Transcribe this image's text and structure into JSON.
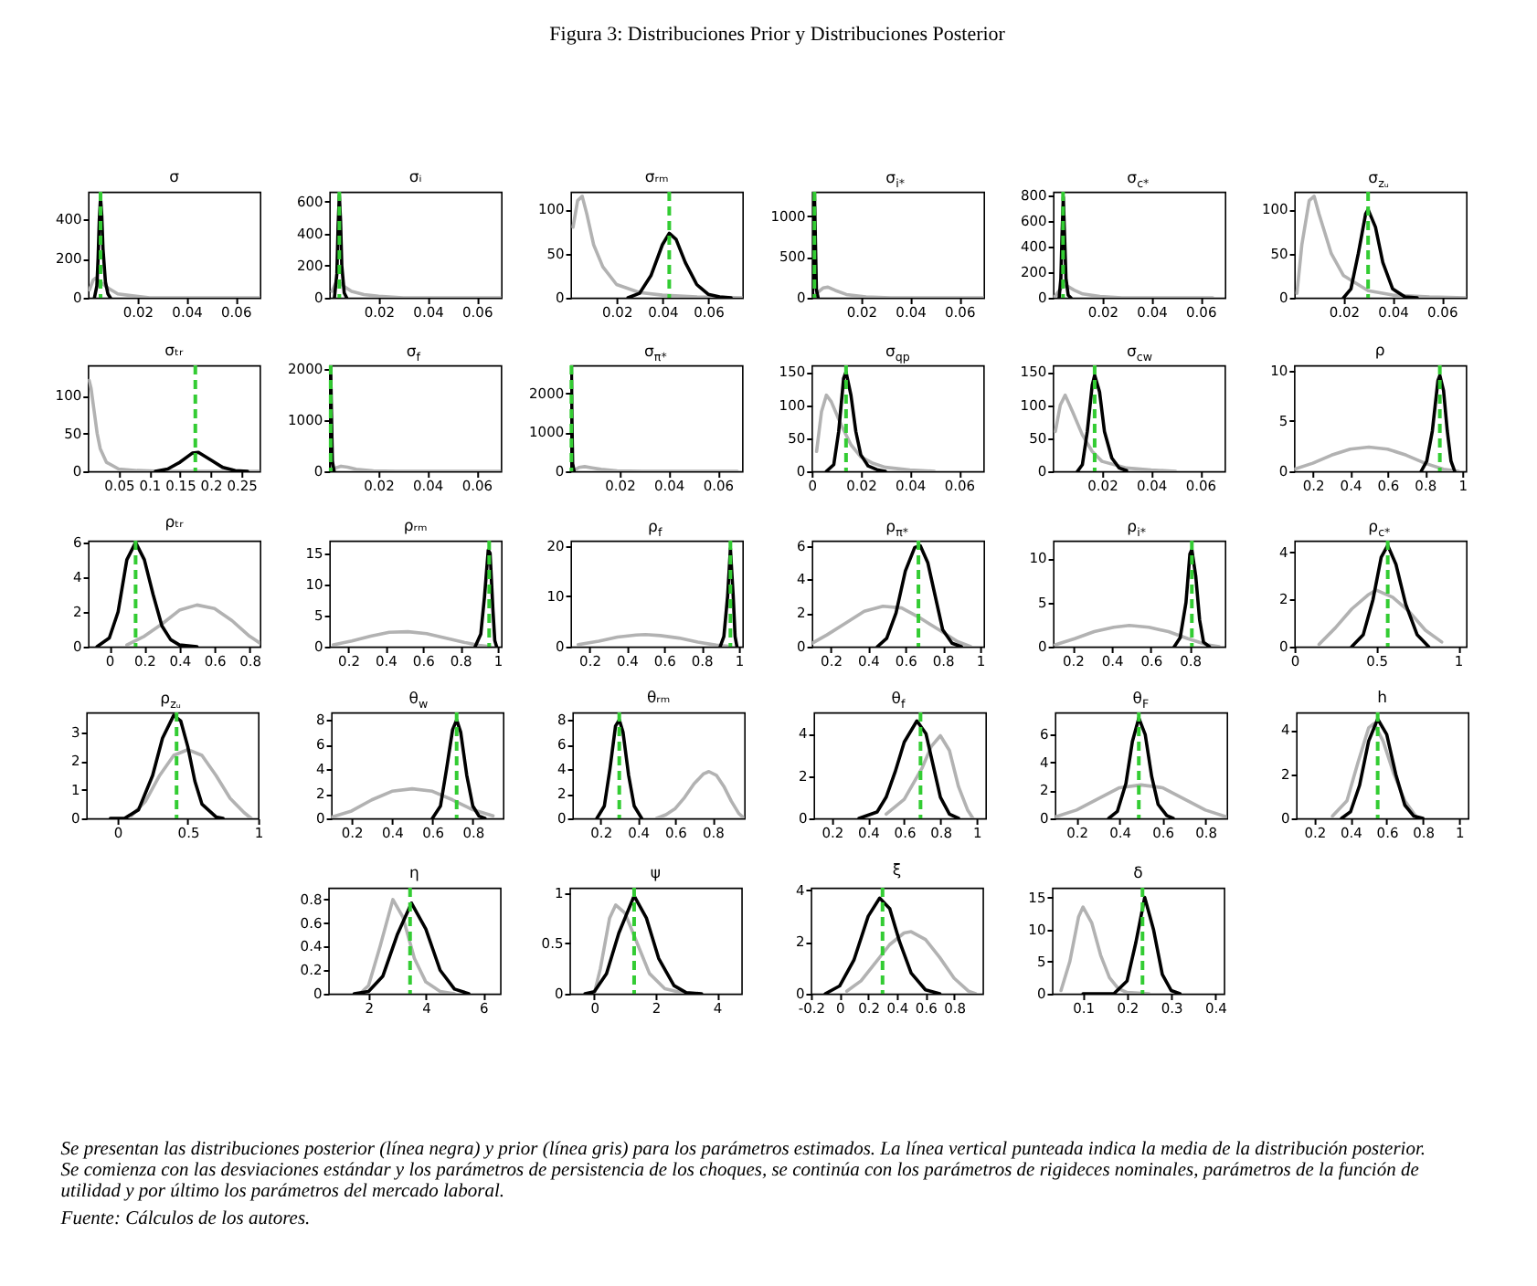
{
  "chart_data": [
    {
      "type": "other",
      "title": "Figura 3: Distribuciones Prior y Distribuciones Posterior"
    },
    {
      "type": "line",
      "title": "σ",
      "xlim": [
        0,
        0.07
      ],
      "xticks": [
        0.02,
        0.04,
        0.06
      ],
      "ylim": [
        0,
        540
      ],
      "yticks": [
        0,
        200,
        400
      ],
      "series": [
        {
          "color": "#b2b2b2",
          "x": [
            0.0005,
            0.002,
            0.003,
            0.005,
            0.008,
            0.012,
            0.018,
            0.025,
            0.035,
            0.05,
            0.07
          ],
          "values": [
            40,
            90,
            100,
            80,
            50,
            20,
            10,
            0,
            0,
            0,
            0
          ]
        },
        {
          "color": "#000000",
          "x": [
            0.0025,
            0.0035,
            0.004,
            0.0045,
            0.005,
            0.0055,
            0.006,
            0.007,
            0.008,
            0.009
          ],
          "values": [
            0,
            60,
            200,
            400,
            510,
            420,
            250,
            80,
            20,
            0
          ]
        }
      ],
      "ref_lines": [
        {
          "axis": "x",
          "value": 0.005,
          "color": "#33cc33",
          "line_style": "dashed"
        }
      ]
    },
    {
      "type": "line",
      "title": "σᵢ",
      "xlim": [
        0,
        0.07
      ],
      "xticks": [
        0.02,
        0.04,
        0.06
      ],
      "ylim": [
        0,
        660
      ],
      "yticks": [
        0,
        200,
        400,
        600
      ],
      "series": [
        {
          "color": "#b2b2b2",
          "x": [
            0.001,
            0.0025,
            0.0035,
            0.006,
            0.009,
            0.014,
            0.02,
            0.03,
            0.045,
            0.07
          ],
          "values": [
            40,
            90,
            100,
            70,
            40,
            20,
            10,
            0,
            0,
            0
          ]
        },
        {
          "color": "#000000",
          "x": [
            0.002,
            0.003,
            0.0035,
            0.004,
            0.0045,
            0.005,
            0.006,
            0.007
          ],
          "values": [
            0,
            150,
            450,
            640,
            480,
            200,
            30,
            0
          ]
        }
      ],
      "ref_lines": [
        {
          "axis": "x",
          "value": 0.004,
          "color": "#33cc33",
          "line_style": "dashed"
        }
      ]
    },
    {
      "type": "line",
      "title": "σᵣₘ",
      "xlim": [
        0,
        0.075
      ],
      "xticks": [
        0.02,
        0.04,
        0.06
      ],
      "ylim": [
        0,
        120
      ],
      "yticks": [
        0,
        50,
        100
      ],
      "series": [
        {
          "color": "#b2b2b2",
          "x": [
            0.001,
            0.003,
            0.005,
            0.007,
            0.01,
            0.014,
            0.02,
            0.03,
            0.04,
            0.055,
            0.075
          ],
          "values": [
            80,
            110,
            115,
            95,
            60,
            35,
            15,
            6,
            3,
            1,
            0
          ]
        },
        {
          "color": "#000000",
          "x": [
            0.025,
            0.03,
            0.035,
            0.04,
            0.043,
            0.046,
            0.05,
            0.055,
            0.06,
            0.065,
            0.07
          ],
          "values": [
            0,
            5,
            25,
            60,
            73,
            66,
            40,
            15,
            4,
            1,
            0
          ]
        }
      ],
      "ref_lines": [
        {
          "axis": "x",
          "value": 0.043,
          "color": "#33cc33",
          "line_style": "dashed"
        }
      ]
    },
    {
      "type": "line",
      "title": "σ$_{i*}$",
      "xlim": [
        0,
        0.07
      ],
      "xticks": [
        0.02,
        0.04,
        0.06
      ],
      "ylim": [
        0,
        1300
      ],
      "yticks": [
        0,
        500,
        1000
      ],
      "series": [
        {
          "color": "#b2b2b2",
          "x": [
            0.001,
            0.0025,
            0.0045,
            0.0065,
            0.0095,
            0.014,
            0.022,
            0.032,
            0.05,
            0.07
          ],
          "values": [
            20,
            70,
            120,
            130,
            90,
            40,
            10,
            0,
            0,
            0
          ]
        },
        {
          "color": "#000000",
          "x": [
            0.0002,
            0.0006,
            0.001,
            0.0014,
            0.0018,
            0.0025
          ],
          "values": [
            0,
            600,
            1300,
            700,
            100,
            0
          ]
        }
      ],
      "ref_lines": [
        {
          "axis": "x",
          "value": 0.001,
          "color": "#33cc33",
          "line_style": "dashed"
        }
      ]
    },
    {
      "type": "line",
      "title": "σ$_{c*}$",
      "xlim": [
        0,
        0.07
      ],
      "xticks": [
        0.02,
        0.04,
        0.06
      ],
      "ylim": [
        0,
        830
      ],
      "yticks": [
        0,
        200,
        400,
        600,
        800
      ],
      "series": [
        {
          "color": "#b2b2b2",
          "x": [
            0.0007,
            0.0018,
            0.0038,
            0.0058,
            0.0085,
            0.012,
            0.019,
            0.028,
            0.04,
            0.065
          ],
          "values": [
            10,
            40,
            90,
            90,
            60,
            30,
            10,
            0,
            0,
            0
          ]
        },
        {
          "color": "#000000",
          "x": [
            0.0024,
            0.0031,
            0.0036,
            0.0041,
            0.0046,
            0.0052,
            0.0061,
            0.0072
          ],
          "values": [
            0,
            150,
            500,
            790,
            500,
            150,
            20,
            0
          ]
        }
      ],
      "ref_lines": [
        {
          "axis": "x",
          "value": 0.004,
          "color": "#33cc33",
          "line_style": "dashed"
        }
      ]
    },
    {
      "type": "line",
      "title": "σ$_{zᵤ}$",
      "xlim": [
        0,
        0.07
      ],
      "xticks": [
        0.02,
        0.04,
        0.06
      ],
      "ylim": [
        0,
        120
      ],
      "yticks": [
        0,
        50,
        100
      ],
      "series": [
        {
          "color": "#b2b2b2",
          "x": [
            0.001,
            0.003,
            0.006,
            0.008,
            0.01,
            0.015,
            0.02,
            0.03,
            0.04,
            0.055,
            0.07
          ],
          "values": [
            5,
            60,
            110,
            115,
            95,
            50,
            25,
            8,
            3,
            1,
            0
          ]
        },
        {
          "color": "#000000",
          "x": [
            0.02,
            0.023,
            0.026,
            0.029,
            0.03,
            0.033,
            0.036,
            0.04,
            0.045,
            0.05
          ],
          "values": [
            0,
            10,
            50,
            95,
            100,
            80,
            40,
            10,
            1,
            0
          ]
        }
      ],
      "ref_lines": [
        {
          "axis": "x",
          "value": 0.03,
          "color": "#33cc33",
          "line_style": "dashed"
        }
      ]
    },
    {
      "type": "line",
      "title": "σₜᵣ",
      "xlim": [
        0,
        0.28
      ],
      "xticks": [
        0.05,
        0.1,
        0.15,
        0.2,
        0.25
      ],
      "ylim": [
        0,
        140
      ],
      "yticks": [
        0,
        50,
        100
      ],
      "series": [
        {
          "color": "#b2b2b2",
          "x": [
            0.002,
            0.005,
            0.01,
            0.015,
            0.02,
            0.03,
            0.05,
            0.08,
            0.12,
            0.2,
            0.28
          ],
          "values": [
            120,
            110,
            80,
            50,
            30,
            12,
            3,
            1,
            0,
            0,
            0
          ]
        },
        {
          "color": "#000000",
          "x": [
            0.11,
            0.13,
            0.15,
            0.17,
            0.18,
            0.2,
            0.22,
            0.24,
            0.26
          ],
          "values": [
            0,
            3,
            12,
            24,
            25,
            15,
            5,
            1,
            0
          ]
        }
      ],
      "ref_lines": [
        {
          "axis": "x",
          "value": 0.175,
          "color": "#33cc33",
          "line_style": "dashed"
        }
      ]
    },
    {
      "type": "line",
      "title": "σ$_{f}$",
      "xlim": [
        0,
        0.07
      ],
      "xticks": [
        0.02,
        0.04,
        0.06
      ],
      "ylim": [
        0,
        2080
      ],
      "yticks": [
        0,
        1000,
        2000
      ],
      "series": [
        {
          "color": "#b2b2b2",
          "x": [
            0.0012,
            0.0028,
            0.0048,
            0.0075,
            0.011,
            0.018,
            0.027,
            0.04,
            0.07
          ],
          "values": [
            20,
            70,
            100,
            80,
            40,
            10,
            0,
            0,
            0
          ]
        },
        {
          "color": "#000000",
          "x": [
            0.0001,
            0.0003,
            0.0006,
            0.0009,
            0.0013,
            0.002
          ],
          "values": [
            0,
            1200,
            2050,
            1200,
            200,
            0
          ]
        }
      ],
      "ref_lines": [
        {
          "axis": "x",
          "value": 0.0006,
          "color": "#33cc33",
          "line_style": "dashed"
        }
      ]
    },
    {
      "type": "line",
      "title": "σ$_{π*}$",
      "xlim": [
        0,
        0.07
      ],
      "xticks": [
        0.02,
        0.04,
        0.06
      ],
      "ylim": [
        0,
        2720
      ],
      "yticks": [
        0,
        1000,
        2000
      ],
      "series": [
        {
          "color": "#b2b2b2",
          "x": [
            0.0015,
            0.0035,
            0.0058,
            0.0088,
            0.0125,
            0.019,
            0.029,
            0.042,
            0.068
          ],
          "values": [
            30,
            100,
            120,
            90,
            50,
            10,
            0,
            0,
            0
          ]
        },
        {
          "color": "#000000",
          "x": [
            0.0001,
            0.0002,
            0.0004,
            0.0006,
            0.0009,
            0.0015
          ],
          "values": [
            0,
            1300,
            2700,
            1400,
            200,
            0
          ]
        }
      ],
      "ref_lines": [
        {
          "axis": "x",
          "value": 0.0004,
          "color": "#33cc33",
          "line_style": "dashed"
        }
      ]
    },
    {
      "type": "line",
      "title": "σ$_{qp}$",
      "xlim": [
        0,
        0.07
      ],
      "xticks": [
        0,
        0.02,
        0.04,
        0.06
      ],
      "ylim": [
        0,
        160
      ],
      "yticks": [
        0,
        50,
        100,
        150
      ],
      "series": [
        {
          "color": "#b2b2b2",
          "x": [
            0.002,
            0.004,
            0.006,
            0.008,
            0.012,
            0.016,
            0.02,
            0.025,
            0.03,
            0.04,
            0.05
          ],
          "values": [
            30,
            90,
            115,
            105,
            70,
            40,
            22,
            12,
            6,
            2,
            0
          ]
        },
        {
          "color": "#000000",
          "x": [
            0.006,
            0.009,
            0.011,
            0.013,
            0.014,
            0.016,
            0.018,
            0.02,
            0.023,
            0.027,
            0.03
          ],
          "values": [
            0,
            10,
            60,
            140,
            150,
            115,
            60,
            25,
            8,
            2,
            0
          ]
        }
      ],
      "ref_lines": [
        {
          "axis": "x",
          "value": 0.014,
          "color": "#33cc33",
          "line_style": "dashed"
        }
      ]
    },
    {
      "type": "line",
      "title": "σ$_{cw}$",
      "xlim": [
        0,
        0.07
      ],
      "xticks": [
        0.02,
        0.04,
        0.06
      ],
      "ylim": [
        0,
        160
      ],
      "yticks": [
        0,
        50,
        100,
        150
      ],
      "series": [
        {
          "color": "#b2b2b2",
          "x": [
            0.001,
            0.003,
            0.005,
            0.008,
            0.012,
            0.016,
            0.02,
            0.03,
            0.04,
            0.05
          ],
          "values": [
            60,
            100,
            115,
            90,
            55,
            30,
            15,
            5,
            2,
            0
          ]
        },
        {
          "color": "#000000",
          "x": [
            0.01,
            0.012,
            0.014,
            0.016,
            0.017,
            0.019,
            0.021,
            0.024,
            0.027,
            0.03
          ],
          "values": [
            0,
            10,
            60,
            130,
            145,
            120,
            60,
            20,
            5,
            1
          ]
        }
      ],
      "ref_lines": [
        {
          "axis": "x",
          "value": 0.017,
          "color": "#33cc33",
          "line_style": "dashed"
        }
      ]
    },
    {
      "type": "line",
      "title": "ρ",
      "xlim": [
        0.1,
        1.02
      ],
      "xticks": [
        0.2,
        0.4,
        0.6,
        0.8,
        1
      ],
      "ylim": [
        0,
        10.5
      ],
      "yticks": [
        0,
        5,
        10
      ],
      "series": [
        {
          "color": "#b2b2b2",
          "x": [
            0.1,
            0.2,
            0.3,
            0.4,
            0.5,
            0.6,
            0.7,
            0.8,
            0.9,
            0.98
          ],
          "values": [
            0.2,
            0.8,
            1.6,
            2.2,
            2.4,
            2.2,
            1.6,
            0.8,
            0.2,
            0
          ]
        },
        {
          "color": "#000000",
          "x": [
            0.78,
            0.81,
            0.84,
            0.87,
            0.88,
            0.9,
            0.92,
            0.94,
            0.96
          ],
          "values": [
            0,
            1,
            4,
            9,
            9.5,
            8,
            4,
            1,
            0
          ]
        }
      ],
      "ref_lines": [
        {
          "axis": "x",
          "value": 0.88,
          "color": "#33cc33",
          "line_style": "dashed"
        }
      ]
    },
    {
      "type": "line",
      "title": "ρₜᵣ",
      "xlim": [
        -0.12,
        0.86
      ],
      "xticks": [
        0,
        0.2,
        0.4,
        0.6,
        0.8
      ],
      "ylim": [
        0,
        6.1
      ],
      "yticks": [
        0,
        2,
        4,
        6
      ],
      "series": [
        {
          "color": "#b2b2b2",
          "x": [
            0.1,
            0.2,
            0.3,
            0.4,
            0.5,
            0.6,
            0.7,
            0.8,
            0.86
          ],
          "values": [
            0.1,
            0.6,
            1.3,
            2.1,
            2.4,
            2.2,
            1.5,
            0.6,
            0.2
          ]
        },
        {
          "color": "#000000",
          "x": [
            -0.07,
            0,
            0.05,
            0.1,
            0.15,
            0.2,
            0.25,
            0.3,
            0.35,
            0.4,
            0.5
          ],
          "values": [
            0,
            0.5,
            2,
            5,
            6,
            5,
            3,
            1.2,
            0.4,
            0.1,
            0
          ]
        }
      ],
      "ref_lines": [
        {
          "axis": "x",
          "value": 0.15,
          "color": "#33cc33",
          "line_style": "dashed"
        }
      ]
    },
    {
      "type": "line",
      "title": "ρᵣₘ",
      "xlim": [
        0.1,
        1.02
      ],
      "xticks": [
        0.2,
        0.4,
        0.6,
        0.8,
        1
      ],
      "ylim": [
        0,
        17
      ],
      "yticks": [
        0,
        5,
        10,
        15
      ],
      "series": [
        {
          "color": "#b2b2b2",
          "x": [
            0.12,
            0.22,
            0.32,
            0.42,
            0.52,
            0.62,
            0.72,
            0.82,
            0.9,
            0.96
          ],
          "values": [
            0.3,
            0.9,
            1.7,
            2.3,
            2.4,
            2.1,
            1.4,
            0.7,
            0.2,
            0
          ]
        },
        {
          "color": "#000000",
          "x": [
            0.88,
            0.91,
            0.93,
            0.95,
            0.96,
            0.975,
            0.985,
            0.995
          ],
          "values": [
            0,
            2,
            8,
            15.5,
            15,
            6,
            1,
            0
          ]
        }
      ],
      "ref_lines": [
        {
          "axis": "x",
          "value": 0.955,
          "color": "#33cc33",
          "line_style": "dashed"
        }
      ]
    },
    {
      "type": "line",
      "title": "ρ$_{f}$",
      "xlim": [
        0.1,
        1.02
      ],
      "xticks": [
        0.2,
        0.4,
        0.6,
        0.8,
        1
      ],
      "ylim": [
        0,
        21
      ],
      "yticks": [
        0,
        10,
        20
      ],
      "series": [
        {
          "color": "#b2b2b2",
          "x": [
            0.14,
            0.25,
            0.35,
            0.45,
            0.5,
            0.58,
            0.68,
            0.78,
            0.88,
            0.94
          ],
          "values": [
            0.4,
            1.1,
            1.9,
            2.3,
            2.4,
            2.2,
            1.7,
            0.9,
            0.3,
            0.1
          ]
        },
        {
          "color": "#000000",
          "x": [
            0.9,
            0.92,
            0.94,
            0.955,
            0.97,
            0.98,
            0.99
          ],
          "values": [
            0,
            2,
            10,
            19.5,
            10,
            2,
            0
          ]
        }
      ],
      "ref_lines": [
        {
          "axis": "x",
          "value": 0.955,
          "color": "#33cc33",
          "line_style": "dashed"
        }
      ]
    },
    {
      "type": "line",
      "title": "ρ$_{π*}$",
      "xlim": [
        0.1,
        1.02
      ],
      "xticks": [
        0.2,
        0.4,
        0.6,
        0.8,
        1
      ],
      "ylim": [
        0,
        6.3
      ],
      "yticks": [
        0,
        2,
        4,
        6
      ],
      "series": [
        {
          "color": "#b2b2b2",
          "x": [
            0.1,
            0.18,
            0.28,
            0.38,
            0.48,
            0.58,
            0.68,
            0.78,
            0.88,
            0.95
          ],
          "values": [
            0.2,
            0.7,
            1.4,
            2.1,
            2.4,
            2.3,
            1.7,
            1,
            0.3,
            0
          ]
        },
        {
          "color": "#000000",
          "x": [
            0.45,
            0.5,
            0.55,
            0.6,
            0.65,
            0.68,
            0.72,
            0.76,
            0.8,
            0.85,
            0.9
          ],
          "values": [
            0,
            0.5,
            2,
            4.5,
            5.9,
            6,
            5,
            3,
            1,
            0.2,
            0
          ]
        }
      ],
      "ref_lines": [
        {
          "axis": "x",
          "value": 0.67,
          "color": "#33cc33",
          "line_style": "dashed"
        }
      ]
    },
    {
      "type": "line",
      "title": "ρ$_{i*}$",
      "xlim": [
        0.1,
        0.98
      ],
      "xticks": [
        0.2,
        0.4,
        0.6,
        0.8
      ],
      "ylim": [
        0,
        12
      ],
      "yticks": [
        0,
        5,
        10
      ],
      "series": [
        {
          "color": "#b2b2b2",
          "x": [
            0.11,
            0.21,
            0.31,
            0.41,
            0.49,
            0.59,
            0.69,
            0.79,
            0.89,
            0.95
          ],
          "values": [
            0.2,
            0.9,
            1.7,
            2.2,
            2.4,
            2.2,
            1.7,
            0.9,
            0.2,
            0
          ]
        },
        {
          "color": "#000000",
          "x": [
            0.72,
            0.75,
            0.78,
            0.8,
            0.81,
            0.83,
            0.85,
            0.87,
            0.9
          ],
          "values": [
            0,
            1,
            5,
            10.5,
            11,
            8,
            3,
            0.5,
            0
          ]
        }
      ],
      "ref_lines": [
        {
          "axis": "x",
          "value": 0.81,
          "color": "#33cc33",
          "line_style": "dashed"
        }
      ]
    },
    {
      "type": "line",
      "title": "ρ$_{c*}$",
      "xlim": [
        0,
        1.05
      ],
      "xticks": [
        0,
        0.5,
        1
      ],
      "ylim": [
        0,
        4.5
      ],
      "yticks": [
        0,
        2,
        4
      ],
      "series": [
        {
          "color": "#b2b2b2",
          "x": [
            0.15,
            0.25,
            0.35,
            0.45,
            0.5,
            0.6,
            0.7,
            0.8,
            0.9
          ],
          "values": [
            0.1,
            0.8,
            1.6,
            2.2,
            2.4,
            2.1,
            1.5,
            0.7,
            0.2
          ]
        },
        {
          "color": "#000000",
          "x": [
            0.35,
            0.42,
            0.48,
            0.53,
            0.57,
            0.62,
            0.68,
            0.75,
            0.82
          ],
          "values": [
            0,
            0.5,
            2,
            3.8,
            4.3,
            3.5,
            1.8,
            0.5,
            0
          ]
        }
      ],
      "ref_lines": [
        {
          "axis": "x",
          "value": 0.57,
          "color": "#33cc33",
          "line_style": "dashed"
        }
      ]
    },
    {
      "type": "line",
      "title": "ρ$_{zᵤ}$",
      "xlim": [
        -0.22,
        1
      ],
      "xticks": [
        0,
        0.5,
        1
      ],
      "ylim": [
        0,
        3.7
      ],
      "yticks": [
        0,
        1,
        2,
        3
      ],
      "series": [
        {
          "color": "#b2b2b2",
          "x": [
            0.1,
            0.2,
            0.3,
            0.4,
            0.5,
            0.6,
            0.7,
            0.8,
            0.9,
            0.95
          ],
          "values": [
            0.1,
            0.6,
            1.5,
            2.2,
            2.4,
            2.2,
            1.5,
            0.7,
            0.2,
            0
          ]
        },
        {
          "color": "#000000",
          "x": [
            -0.05,
            0.05,
            0.15,
            0.25,
            0.32,
            0.4,
            0.45,
            0.5,
            0.55,
            0.6,
            0.7,
            0.75
          ],
          "values": [
            0,
            0,
            0.3,
            1.5,
            2.8,
            3.6,
            3.4,
            2.5,
            1.3,
            0.5,
            0.05,
            0
          ]
        }
      ],
      "ref_lines": [
        {
          "axis": "x",
          "value": 0.42,
          "color": "#33cc33",
          "line_style": "dashed"
        }
      ]
    },
    {
      "type": "line",
      "title": "θ$_{w}$",
      "xlim": [
        0.1,
        0.95
      ],
      "xticks": [
        0.2,
        0.4,
        0.6,
        0.8
      ],
      "ylim": [
        0,
        8.6
      ],
      "yticks": [
        0,
        2,
        4,
        6,
        8
      ],
      "series": [
        {
          "color": "#b2b2b2",
          "x": [
            0.1,
            0.2,
            0.3,
            0.4,
            0.5,
            0.6,
            0.7,
            0.8,
            0.9
          ],
          "values": [
            0.1,
            0.6,
            1.5,
            2.2,
            2.4,
            2.2,
            1.5,
            0.7,
            0.2
          ]
        },
        {
          "color": "#000000",
          "x": [
            0.6,
            0.64,
            0.67,
            0.7,
            0.72,
            0.74,
            0.77,
            0.8,
            0.83,
            0.86
          ],
          "values": [
            0,
            1,
            4,
            7.2,
            8,
            7,
            3.5,
            1,
            0.2,
            0
          ]
        }
      ],
      "ref_lines": [
        {
          "axis": "x",
          "value": 0.72,
          "color": "#33cc33",
          "line_style": "dashed"
        }
      ]
    },
    {
      "type": "line",
      "title": "θᵣₘ",
      "xlim": [
        0.05,
        0.97
      ],
      "xticks": [
        0.2,
        0.4,
        0.6,
        0.8
      ],
      "ylim": [
        0,
        8.6
      ],
      "yticks": [
        0,
        2,
        4,
        6,
        8
      ],
      "series": [
        {
          "color": "#b2b2b2",
          "x": [
            0.5,
            0.55,
            0.6,
            0.65,
            0.7,
            0.75,
            0.78,
            0.82,
            0.86,
            0.9,
            0.94,
            0.97
          ],
          "values": [
            0,
            0.3,
            0.8,
            1.7,
            2.8,
            3.6,
            3.8,
            3.5,
            2.6,
            1.4,
            0.4,
            0
          ]
        },
        {
          "color": "#000000",
          "x": [
            0.18,
            0.22,
            0.25,
            0.28,
            0.3,
            0.32,
            0.35,
            0.38,
            0.42
          ],
          "values": [
            0,
            1,
            4,
            7.5,
            8,
            7,
            3.5,
            1,
            0
          ]
        }
      ],
      "ref_lines": [
        {
          "axis": "x",
          "value": 0.3,
          "color": "#33cc33",
          "line_style": "dashed"
        }
      ]
    },
    {
      "type": "line",
      "title": "θ$_{f}$",
      "xlim": [
        0.1,
        1.05
      ],
      "xticks": [
        0.2,
        0.4,
        0.6,
        0.8,
        1
      ],
      "ylim": [
        0,
        5
      ],
      "yticks": [
        0,
        2,
        4
      ],
      "series": [
        {
          "color": "#b2b2b2",
          "x": [
            0.5,
            0.6,
            0.7,
            0.75,
            0.8,
            0.85,
            0.9,
            0.95,
            0.98
          ],
          "values": [
            0.2,
            0.9,
            2.4,
            3.4,
            3.9,
            3.2,
            1.5,
            0.4,
            0
          ]
        },
        {
          "color": "#000000",
          "x": [
            0.35,
            0.45,
            0.5,
            0.55,
            0.6,
            0.67,
            0.72,
            0.76,
            0.8,
            0.85,
            0.9
          ],
          "values": [
            0,
            0.3,
            1,
            2.2,
            3.6,
            4.6,
            4,
            2.5,
            1,
            0.2,
            0
          ]
        }
      ],
      "ref_lines": [
        {
          "axis": "x",
          "value": 0.69,
          "color": "#33cc33",
          "line_style": "dashed"
        }
      ]
    },
    {
      "type": "line",
      "title": "θ$_{F}$",
      "xlim": [
        0.1,
        0.9
      ],
      "xticks": [
        0.2,
        0.4,
        0.6,
        0.8
      ],
      "ylim": [
        0,
        7.6
      ],
      "yticks": [
        0,
        2,
        4,
        6
      ],
      "series": [
        {
          "color": "#b2b2b2",
          "x": [
            0.1,
            0.2,
            0.3,
            0.4,
            0.5,
            0.6,
            0.7,
            0.8,
            0.9
          ],
          "values": [
            0.1,
            0.6,
            1.4,
            2.2,
            2.4,
            2.2,
            1.4,
            0.6,
            0.1
          ]
        },
        {
          "color": "#000000",
          "x": [
            0.35,
            0.39,
            0.43,
            0.46,
            0.49,
            0.52,
            0.55,
            0.58,
            0.62,
            0.65
          ],
          "values": [
            0,
            0.5,
            2.5,
            5.5,
            7.2,
            6,
            3,
            1,
            0.2,
            0
          ]
        }
      ],
      "ref_lines": [
        {
          "axis": "x",
          "value": 0.49,
          "color": "#33cc33",
          "line_style": "dashed"
        }
      ]
    },
    {
      "type": "line",
      "title": "h",
      "xlim": [
        0.1,
        1.05
      ],
      "xticks": [
        0.2,
        0.4,
        0.6,
        0.8,
        1
      ],
      "ylim": [
        0,
        4.8
      ],
      "yticks": [
        0,
        2,
        4
      ],
      "series": [
        {
          "color": "#b2b2b2",
          "x": [
            0.3,
            0.38,
            0.44,
            0.5,
            0.53,
            0.58,
            0.64,
            0.7,
            0.76
          ],
          "values": [
            0.1,
            0.8,
            2.5,
            4.1,
            4.3,
            3.5,
            2,
            0.8,
            0.1
          ]
        },
        {
          "color": "#000000",
          "x": [
            0.35,
            0.4,
            0.45,
            0.5,
            0.55,
            0.6,
            0.65,
            0.7,
            0.75,
            0.8
          ],
          "values": [
            0,
            0.3,
            1.5,
            3.5,
            4.5,
            3.8,
            2,
            0.6,
            0.1,
            0
          ]
        }
      ],
      "ref_lines": [
        {
          "axis": "x",
          "value": 0.55,
          "color": "#33cc33",
          "line_style": "dashed"
        }
      ]
    },
    {
      "type": "line",
      "title": "η",
      "xlim": [
        0.6,
        6.6
      ],
      "xticks": [
        2,
        4,
        6
      ],
      "ylim": [
        0,
        0.9
      ],
      "yticks": [
        0,
        0.2,
        0.4,
        0.6,
        0.8
      ],
      "series": [
        {
          "color": "#b2b2b2",
          "x": [
            1.7,
            2,
            2.4,
            2.85,
            3.2,
            3.6,
            4,
            4.5,
            5
          ],
          "values": [
            0,
            0.07,
            0.4,
            0.8,
            0.65,
            0.3,
            0.1,
            0.02,
            0
          ]
        },
        {
          "color": "#000000",
          "x": [
            1.5,
            2,
            2.5,
            3,
            3.5,
            4,
            4.5,
            5,
            5.5
          ],
          "values": [
            0,
            0.02,
            0.15,
            0.5,
            0.77,
            0.55,
            0.2,
            0.04,
            0
          ]
        }
      ],
      "ref_lines": [
        {
          "axis": "x",
          "value": 3.45,
          "color": "#33cc33",
          "line_style": "dashed"
        }
      ]
    },
    {
      "type": "line",
      "title": "ψ",
      "xlim": [
        -0.8,
        4.8
      ],
      "xticks": [
        0,
        2,
        4
      ],
      "ylim": [
        0,
        1.05
      ],
      "yticks": [
        0,
        0.5,
        1
      ],
      "series": [
        {
          "color": "#b2b2b2",
          "x": [
            0,
            0.2,
            0.5,
            0.7,
            1,
            1.4,
            1.8,
            2.3,
            3
          ],
          "values": [
            0,
            0.25,
            0.75,
            0.88,
            0.8,
            0.5,
            0.2,
            0.05,
            0
          ]
        },
        {
          "color": "#000000",
          "x": [
            -0.3,
            0,
            0.4,
            0.8,
            1.3,
            1.7,
            2.1,
            2.6,
            3,
            3.5
          ],
          "values": [
            0,
            0.02,
            0.2,
            0.6,
            0.97,
            0.75,
            0.35,
            0.08,
            0.01,
            0
          ]
        }
      ],
      "ref_lines": [
        {
          "axis": "x",
          "value": 1.3,
          "color": "#33cc33",
          "line_style": "dashed"
        }
      ]
    },
    {
      "type": "line",
      "title": "ξ",
      "xlim": [
        -0.2,
        1
      ],
      "xticks": [
        -0.2,
        0,
        0.2,
        0.4,
        0.6,
        0.8
      ],
      "ylim": [
        0,
        4.1
      ],
      "yticks": [
        0,
        2,
        4
      ],
      "series": [
        {
          "color": "#b2b2b2",
          "x": [
            0.05,
            0.15,
            0.25,
            0.35,
            0.45,
            0.5,
            0.6,
            0.7,
            0.8,
            0.9,
            0.95
          ],
          "values": [
            0.1,
            0.5,
            1.2,
            1.9,
            2.35,
            2.4,
            2.1,
            1.4,
            0.6,
            0.1,
            0
          ]
        },
        {
          "color": "#000000",
          "x": [
            -0.1,
            0,
            0.1,
            0.2,
            0.28,
            0.35,
            0.42,
            0.5,
            0.6,
            0.7
          ],
          "values": [
            0,
            0.3,
            1.3,
            3,
            3.7,
            3.3,
            2,
            0.8,
            0.15,
            0
          ]
        }
      ],
      "ref_lines": [
        {
          "axis": "x",
          "value": 0.3,
          "color": "#33cc33",
          "line_style": "dashed"
        }
      ]
    },
    {
      "type": "line",
      "title": "δ",
      "xlim": [
        0.03,
        0.42
      ],
      "xticks": [
        0.1,
        0.2,
        0.3,
        0.4
      ],
      "ylim": [
        0,
        16.5
      ],
      "yticks": [
        0,
        5,
        10,
        15
      ],
      "series": [
        {
          "color": "#b2b2b2",
          "x": [
            0.05,
            0.07,
            0.09,
            0.1,
            0.12,
            0.14,
            0.16,
            0.18,
            0.2,
            0.25
          ],
          "values": [
            0.5,
            5,
            12,
            13.5,
            11,
            6,
            2.5,
            0.8,
            0.2,
            0
          ]
        },
        {
          "color": "#000000",
          "x": [
            0.1,
            0.17,
            0.2,
            0.22,
            0.24,
            0.26,
            0.28,
            0.3,
            0.32
          ],
          "values": [
            0,
            0,
            2,
            8,
            15,
            10,
            3,
            0.5,
            0
          ]
        }
      ],
      "ref_lines": [
        {
          "axis": "x",
          "value": 0.235,
          "color": "#33cc33",
          "line_style": "dashed"
        }
      ]
    },
    {
      "type": "other",
      "annotations": [
        "Se presentan las distribuciones posterior (línea negra) y prior (línea gris) para los parámetros estimados. La línea vertical punteada indica la media de la distribución posterior. Se comienza con las desviaciones estándar y los parámetros de persistencia de los choques, se continúa con los parámetros de rigideces nominales, parámetros de la función de utilidad y por último los parámetros del mercado laboral.",
        "Fuente: Cálculos de los autores."
      ]
    }
  ]
}
